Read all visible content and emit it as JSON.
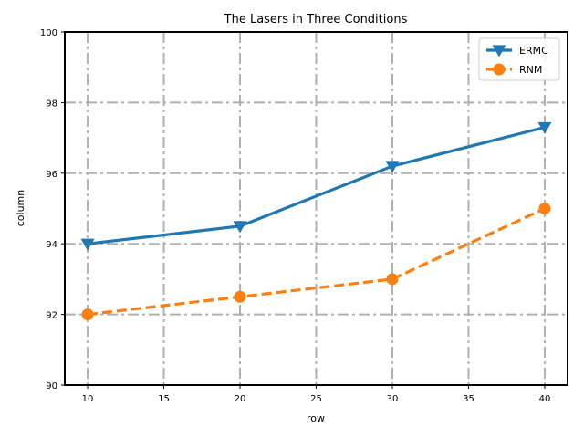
{
  "chart_data": {
    "type": "line",
    "title": "The Lasers in Three Conditions",
    "xlabel": "row",
    "ylabel": "column",
    "x": [
      10,
      20,
      30,
      40
    ],
    "xticks": [
      10,
      15,
      20,
      25,
      30,
      35,
      40
    ],
    "yticks": [
      90,
      92,
      94,
      96,
      98,
      100
    ],
    "xlim": [
      8.5,
      41.5
    ],
    "ylim": [
      90,
      100
    ],
    "grid": true,
    "legend_position": "top-right",
    "series": [
      {
        "name": "ERMC",
        "values": [
          94.0,
          94.5,
          96.2,
          97.3
        ],
        "color": "#1f77b4",
        "marker": "triangle-down",
        "linestyle": "solid"
      },
      {
        "name": "RNM",
        "values": [
          92.0,
          92.5,
          93.0,
          95.0
        ],
        "color": "#ff7f0e",
        "marker": "circle",
        "linestyle": "dashed"
      }
    ]
  }
}
